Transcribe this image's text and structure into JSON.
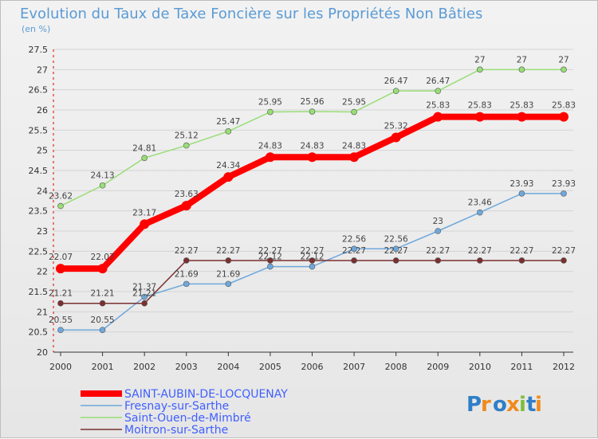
{
  "chart_data": {
    "type": "line",
    "title": "Evolution du Taux de Taxe Foncière sur les Propriétés Non Bâties",
    "subtitle": "(en %)",
    "x": [
      "2000",
      "2001",
      "2002",
      "2003",
      "2004",
      "2005",
      "2006",
      "2007",
      "2008",
      "2009",
      "2010",
      "2011",
      "2012"
    ],
    "ylim": [
      20,
      27.5
    ],
    "yticks": [
      "20",
      "20.5",
      "21",
      "21.5",
      "22",
      "22.5",
      "23",
      "23.5",
      "24",
      "24.5",
      "25",
      "25.5",
      "26",
      "26.5",
      "27",
      "27.5"
    ],
    "grid": "horizontal",
    "legend_position": "bottom-left",
    "series": [
      {
        "name": "SAINT-AUBIN-DE-LOCQUENAY",
        "color": "#ff0000",
        "values": [
          22.07,
          22.07,
          23.17,
          23.63,
          24.34,
          24.83,
          24.83,
          24.83,
          25.32,
          25.83,
          25.83,
          25.83,
          25.83
        ],
        "labels": [
          "22.07",
          "22.07",
          "23.17",
          "23.63",
          "24.34",
          "24.83",
          "24.83",
          "24.83",
          "25.32",
          "25.83",
          "25.83",
          "25.83",
          "25.83"
        ]
      },
      {
        "name": "Fresnay-sur-Sarthe",
        "color": "#6fa8dc",
        "values": [
          20.55,
          20.55,
          21.37,
          21.69,
          21.69,
          22.12,
          22.12,
          22.56,
          22.56,
          23,
          23.46,
          23.93,
          23.93
        ],
        "labels": [
          "20.55",
          "20.55",
          "21.37",
          "21.69",
          "21.69",
          "22.12",
          "22.12",
          "22.56",
          "22.56",
          "23",
          "23.46",
          "23.93",
          "23.93"
        ]
      },
      {
        "name": "Saint-Ouen-de-Mimbré",
        "color": "#99dd77",
        "values": [
          23.62,
          24.13,
          24.81,
          25.12,
          25.47,
          25.95,
          25.96,
          25.95,
          26.47,
          26.47,
          27,
          27,
          27
        ],
        "labels": [
          "23.62",
          "24.13",
          "24.81",
          "25.12",
          "25.47",
          "25.95",
          "25.96",
          "25.95",
          "26.47",
          "26.47",
          "27",
          "27",
          "27"
        ]
      },
      {
        "name": "Moitron-sur-Sarthe",
        "color": "#7a3030",
        "values": [
          21.21,
          21.21,
          21.21,
          22.27,
          22.27,
          22.27,
          22.27,
          22.27,
          22.27,
          22.27,
          22.27,
          22.27,
          22.27
        ],
        "labels": [
          "21.21",
          "21.21",
          "21.21",
          "22.27",
          "22.27",
          "22.27",
          "22.27",
          "22.27",
          "22.27",
          "22.27",
          "22.27",
          "22.27",
          "22.27"
        ]
      }
    ]
  },
  "logo": {
    "text": "Proxiti",
    "letter_colors": [
      "#2f7ec7",
      "#f08a1c",
      "#2f7ec7",
      "#f08a1c",
      "#7cbf3a",
      "#2f7ec7",
      "#f08a1c"
    ]
  }
}
